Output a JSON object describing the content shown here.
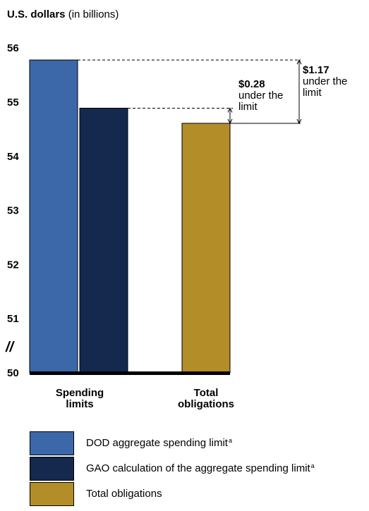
{
  "chart_data": {
    "type": "bar",
    "ylabel_bold": "U.S. dollars",
    "ylabel_rest": " (in billions)",
    "ylim": [
      50,
      56
    ],
    "y_ticks": [
      "50",
      "51",
      "52",
      "53",
      "54",
      "55",
      "56"
    ],
    "axis_break_symbol": "//",
    "categories": [
      "Spending\nlimits",
      "Total\nobligations"
    ],
    "bars": [
      {
        "series": "DOD aggregate spending limit",
        "value": 55.78
      },
      {
        "series": "GAO calculation of the aggregate spending limit",
        "value": 54.89
      },
      {
        "series": "Total obligations",
        "value": 54.61
      }
    ],
    "legend": [
      {
        "label": "DOD aggregate spending limit",
        "sup": "a",
        "color": "#3c68aa"
      },
      {
        "label": "GAO calculation of the aggregate spending limit",
        "sup": "a",
        "color": "#15284e"
      },
      {
        "label": "Total obligations",
        "sup": "",
        "color": "#b38d28"
      }
    ],
    "annotations": [
      {
        "amount": "$0.28",
        "line1": "under the",
        "line2": "limit"
      },
      {
        "amount": "$1.17",
        "line1": "under the",
        "line2": "limit"
      }
    ]
  }
}
